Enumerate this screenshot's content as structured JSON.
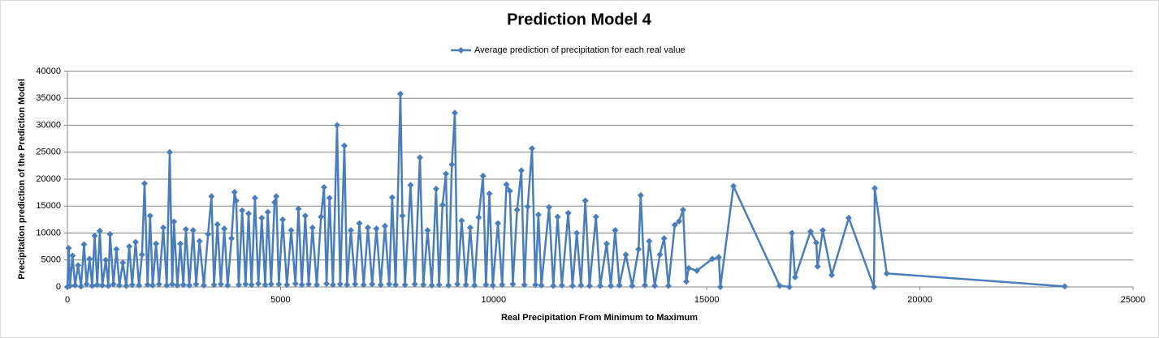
{
  "chart_data": {
    "type": "line",
    "title": "Prediction Model 4",
    "x_label": "Real Precipitation From Minimum to Maximum",
    "y_label": "Precipitation prediction of the Prediction Model",
    "legend": "top",
    "grid": true,
    "xlim": [
      0,
      25000
    ],
    "xticks": [
      0,
      5000,
      10000,
      15000,
      20000,
      25000
    ],
    "ylim": [
      0,
      40000
    ],
    "yticks": [
      0,
      5000,
      10000,
      15000,
      20000,
      25000,
      30000,
      35000,
      40000
    ],
    "x": [
      0,
      30,
      60,
      120,
      180,
      250,
      320,
      390,
      450,
      520,
      580,
      640,
      700,
      760,
      820,
      900,
      960,
      1000,
      1080,
      1150,
      1220,
      1300,
      1380,
      1450,
      1520,
      1600,
      1680,
      1750,
      1810,
      1880,
      1940,
      2000,
      2080,
      2150,
      2250,
      2330,
      2400,
      2460,
      2500,
      2580,
      2650,
      2720,
      2780,
      2860,
      2950,
      3020,
      3100,
      3200,
      3300,
      3380,
      3440,
      3520,
      3600,
      3680,
      3760,
      3850,
      3920,
      3960,
      4020,
      4100,
      4180,
      4250,
      4320,
      4400,
      4480,
      4560,
      4640,
      4700,
      4780,
      4860,
      4900,
      4960,
      5050,
      5150,
      5250,
      5350,
      5420,
      5500,
      5580,
      5660,
      5750,
      5850,
      5950,
      6020,
      6080,
      6150,
      6230,
      6326,
      6400,
      6498,
      6560,
      6650,
      6750,
      6850,
      6950,
      7050,
      7150,
      7250,
      7350,
      7450,
      7550,
      7620,
      7700,
      7813,
      7860,
      7920,
      8050,
      8150,
      8270,
      8350,
      8450,
      8550,
      8650,
      8720,
      8800,
      8880,
      8940,
      9020,
      9089,
      9150,
      9250,
      9350,
      9450,
      9550,
      9650,
      9750,
      9820,
      9900,
      9980,
      10100,
      10200,
      10300,
      10380,
      10450,
      10550,
      10650,
      10720,
      10800,
      10900,
      10980,
      11050,
      11120,
      11300,
      11400,
      11500,
      11600,
      11750,
      11850,
      11950,
      12050,
      12150,
      12250,
      12400,
      12500,
      12650,
      12750,
      12850,
      12950,
      13100,
      13250,
      13400,
      13450,
      13550,
      13650,
      13780,
      13900,
      14000,
      14100,
      14250,
      14350,
      14444,
      14520,
      14577,
      14768,
      15130,
      15282,
      15320,
      15625,
      16711,
      16940,
      16997,
      17073,
      17435,
      17569,
      17600,
      17721,
      17931,
      18331,
      18922,
      18941,
      19223,
      23399
    ],
    "series": [
      {
        "name": "Average prediction of precipitation for each real value",
        "color": "#4a7ebb",
        "values": [
          0,
          7200,
          200,
          5800,
          300,
          4000,
          100,
          7900,
          500,
          5200,
          200,
          9500,
          400,
          10400,
          300,
          5000,
          200,
          9800,
          500,
          7000,
          300,
          4500,
          200,
          7500,
          400,
          8300,
          300,
          6000,
          19200,
          400,
          13200,
          300,
          8000,
          500,
          11000,
          300,
          25000,
          500,
          12100,
          300,
          8000,
          400,
          10700,
          300,
          10500,
          500,
          8500,
          300,
          9800,
          16800,
          400,
          11600,
          500,
          10800,
          300,
          9000,
          17600,
          16000,
          400,
          14200,
          500,
          13600,
          400,
          16500,
          600,
          12800,
          400,
          13900,
          500,
          15700,
          16800,
          500,
          12500,
          400,
          10500,
          600,
          14500,
          400,
          13200,
          500,
          11000,
          400,
          13000,
          18500,
          600,
          16500,
          400,
          30000,
          500,
          26200,
          400,
          10500,
          500,
          11800,
          400,
          11000,
          500,
          10800,
          400,
          11300,
          500,
          16600,
          400,
          35800,
          13200,
          400,
          18900,
          500,
          24000,
          400,
          10500,
          300,
          18200,
          400,
          15200,
          21000,
          300,
          22700,
          32300,
          500,
          12300,
          400,
          11000,
          300,
          12900,
          20600,
          400,
          17300,
          300,
          11800,
          400,
          19000,
          17800,
          500,
          14300,
          21600,
          400,
          14900,
          25700,
          400,
          13400,
          300,
          14800,
          200,
          13000,
          300,
          13700,
          200,
          10000,
          300,
          16000,
          200,
          13000,
          200,
          8000,
          200,
          10500,
          300,
          6000,
          200,
          7000,
          17000,
          300,
          8500,
          200,
          6000,
          9000,
          200,
          11500,
          12200,
          14300,
          1000,
          3500,
          3000,
          5200,
          5500,
          0,
          18700,
          200,
          0,
          10000,
          1800,
          10300,
          8200,
          3800,
          10500,
          2200,
          12800,
          0,
          18300,
          2500,
          100
        ]
      }
    ]
  }
}
